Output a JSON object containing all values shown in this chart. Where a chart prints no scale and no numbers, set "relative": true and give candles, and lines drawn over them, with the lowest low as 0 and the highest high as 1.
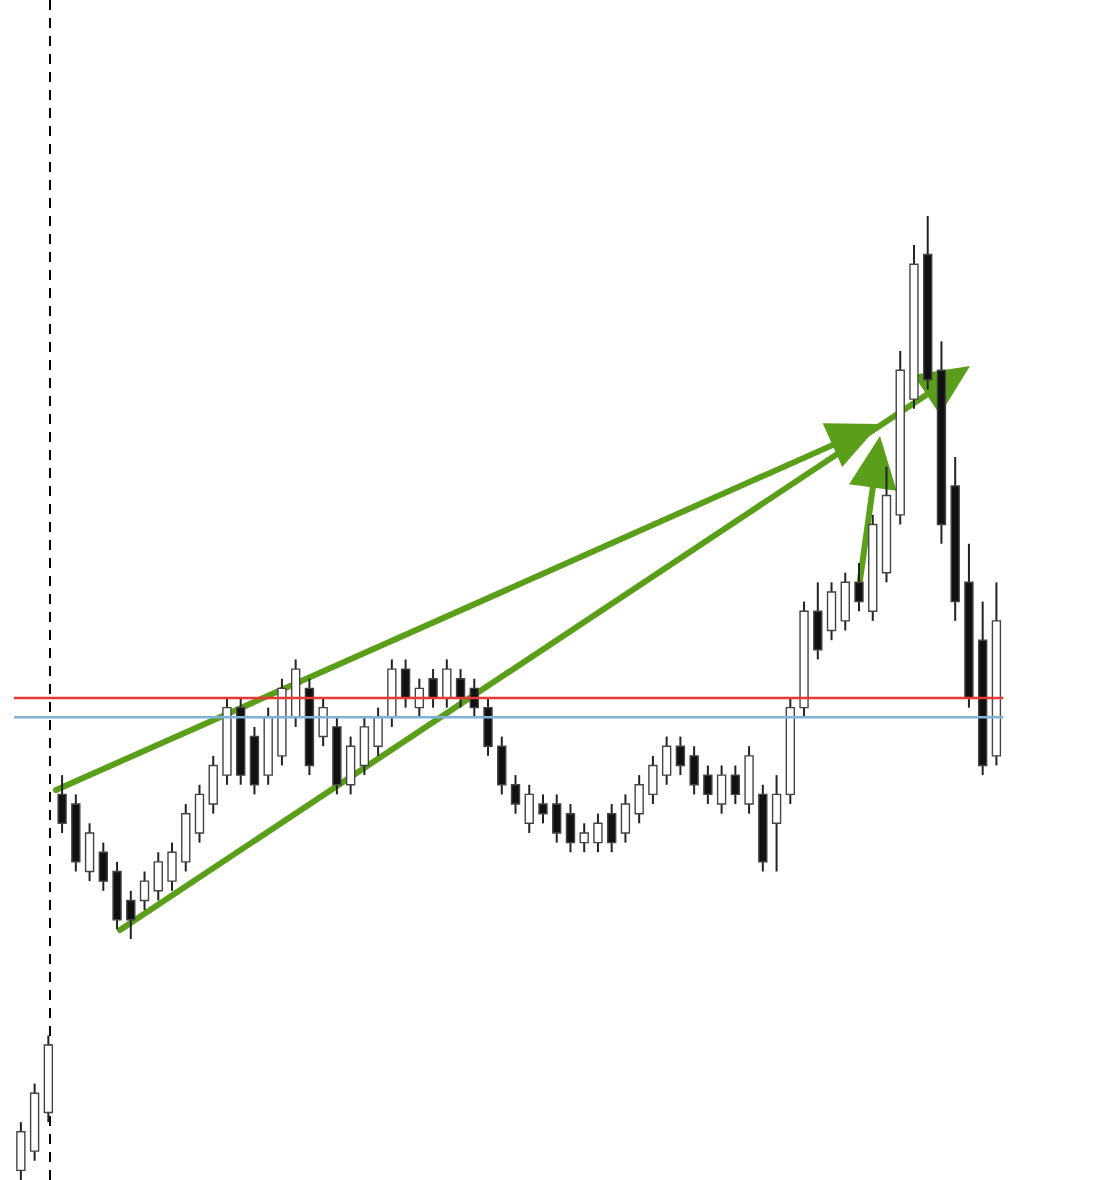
{
  "chart_data": {
    "type": "candlestick",
    "relative": true,
    "categories": [
      null,
      null,
      null,
      null,
      null,
      null,
      null,
      null,
      null,
      null,
      null,
      null,
      null,
      null,
      null,
      null,
      null,
      null,
      null,
      null,
      null,
      null,
      null,
      null,
      null,
      null,
      null,
      null,
      null,
      null,
      null,
      null,
      null,
      null,
      null,
      null,
      null,
      null,
      null,
      null,
      null,
      null,
      null,
      null,
      null,
      null,
      null,
      null,
      null,
      null,
      null,
      null,
      null,
      null,
      null,
      null,
      null,
      null,
      null,
      null,
      null,
      null,
      null,
      null,
      null,
      null,
      null,
      null,
      null,
      null,
      null,
      null
    ],
    "ohlc": [
      [
        0.01,
        0.06,
        0,
        0.05
      ],
      [
        0.03,
        0.1,
        0.02,
        0.09
      ],
      [
        0.07,
        0.15,
        0.06,
        0.14
      ],
      [
        0.4,
        0.42,
        0.36,
        0.37
      ],
      [
        0.39,
        0.4,
        0.32,
        0.33
      ],
      [
        0.32,
        0.37,
        0.31,
        0.36
      ],
      [
        0.34,
        0.35,
        0.3,
        0.31
      ],
      [
        0.32,
        0.33,
        0.26,
        0.27
      ],
      [
        0.29,
        0.3,
        0.25,
        0.27
      ],
      [
        0.29,
        0.32,
        0.28,
        0.31
      ],
      [
        0.3,
        0.34,
        0.29,
        0.33
      ],
      [
        0.31,
        0.35,
        0.3,
        0.34
      ],
      [
        0.33,
        0.39,
        0.32,
        0.38
      ],
      [
        0.36,
        0.41,
        0.35,
        0.4
      ],
      [
        0.39,
        0.44,
        0.38,
        0.43
      ],
      [
        0.42,
        0.5,
        0.41,
        0.49
      ],
      [
        0.49,
        0.5,
        0.41,
        0.42
      ],
      [
        0.46,
        0.47,
        0.4,
        0.41
      ],
      [
        0.42,
        0.49,
        0.41,
        0.48
      ],
      [
        0.44,
        0.52,
        0.43,
        0.51
      ],
      [
        0.48,
        0.54,
        0.47,
        0.53
      ],
      [
        0.51,
        0.52,
        0.42,
        0.43
      ],
      [
        0.46,
        0.5,
        0.45,
        0.49
      ],
      [
        0.47,
        0.48,
        0.4,
        0.41
      ],
      [
        0.41,
        0.46,
        0.4,
        0.45
      ],
      [
        0.43,
        0.48,
        0.42,
        0.47
      ],
      [
        0.45,
        0.49,
        0.44,
        0.48
      ],
      [
        0.48,
        0.54,
        0.47,
        0.53
      ],
      [
        0.53,
        0.54,
        0.49,
        0.5
      ],
      [
        0.49,
        0.52,
        0.48,
        0.51
      ],
      [
        0.52,
        0.53,
        0.49,
        0.5
      ],
      [
        0.5,
        0.54,
        0.49,
        0.53
      ],
      [
        0.52,
        0.53,
        0.49,
        0.5
      ],
      [
        0.51,
        0.52,
        0.48,
        0.49
      ],
      [
        0.49,
        0.5,
        0.44,
        0.45
      ],
      [
        0.45,
        0.46,
        0.4,
        0.41
      ],
      [
        0.41,
        0.42,
        0.38,
        0.39
      ],
      [
        0.37,
        0.41,
        0.36,
        0.4
      ],
      [
        0.39,
        0.4,
        0.37,
        0.38
      ],
      [
        0.39,
        0.4,
        0.35,
        0.36
      ],
      [
        0.38,
        0.39,
        0.34,
        0.35
      ],
      [
        0.35,
        0.37,
        0.34,
        0.36
      ],
      [
        0.35,
        0.38,
        0.34,
        0.37
      ],
      [
        0.38,
        0.39,
        0.34,
        0.35
      ],
      [
        0.36,
        0.4,
        0.35,
        0.39
      ],
      [
        0.38,
        0.42,
        0.37,
        0.41
      ],
      [
        0.4,
        0.44,
        0.39,
        0.43
      ],
      [
        0.42,
        0.46,
        0.41,
        0.45
      ],
      [
        0.45,
        0.46,
        0.42,
        0.43
      ],
      [
        0.44,
        0.45,
        0.4,
        0.41
      ],
      [
        0.42,
        0.43,
        0.39,
        0.4
      ],
      [
        0.39,
        0.43,
        0.38,
        0.42
      ],
      [
        0.42,
        0.43,
        0.39,
        0.4
      ],
      [
        0.39,
        0.45,
        0.38,
        0.44
      ],
      [
        0.4,
        0.41,
        0.32,
        0.33
      ],
      [
        0.37,
        0.42,
        0.32,
        0.4
      ],
      [
        0.4,
        0.5,
        0.39,
        0.49
      ],
      [
        0.49,
        0.6,
        0.48,
        0.59
      ],
      [
        0.59,
        0.62,
        0.54,
        0.55
      ],
      [
        0.57,
        0.62,
        0.56,
        0.61
      ],
      [
        0.58,
        0.63,
        0.57,
        0.62
      ],
      [
        0.62,
        0.64,
        0.59,
        0.6
      ],
      [
        0.59,
        0.69,
        0.58,
        0.68
      ],
      [
        0.63,
        0.74,
        0.62,
        0.71
      ],
      [
        0.69,
        0.86,
        0.68,
        0.84
      ],
      [
        0.81,
        0.97,
        0.8,
        0.95
      ],
      [
        0.96,
        1.0,
        0.82,
        0.83
      ],
      [
        0.84,
        0.87,
        0.66,
        0.68
      ],
      [
        0.72,
        0.75,
        0.58,
        0.6
      ],
      [
        0.62,
        0.66,
        0.49,
        0.5
      ],
      [
        0.56,
        0.6,
        0.42,
        0.43
      ],
      [
        0.44,
        0.62,
        0.43,
        0.58
      ]
    ],
    "ref_lines": [
      {
        "axis": "y",
        "value": 0.5,
        "color": "#e53935"
      },
      {
        "axis": "y",
        "value": 0.48,
        "color": "#7fb2d9"
      }
    ]
  }
}
